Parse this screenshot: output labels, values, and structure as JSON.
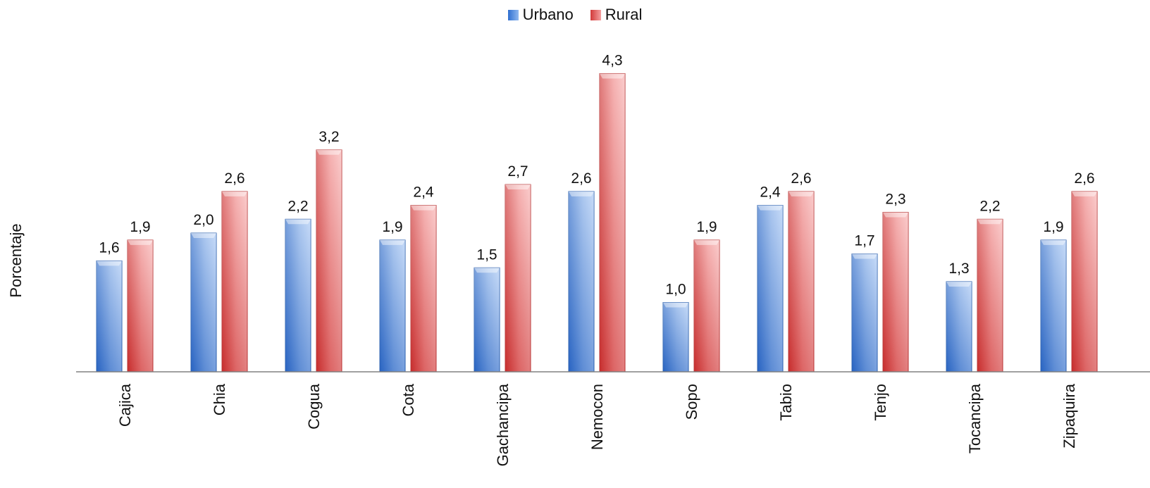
{
  "chart_data": {
    "type": "bar",
    "title": "",
    "xlabel": "",
    "ylabel": "Porcentaje",
    "ylim": [
      0,
      4.5
    ],
    "grid": false,
    "legend_position": "top-center",
    "categories": [
      "Cajica",
      "Chia",
      "Cogua",
      "Cota",
      "Gachancipa",
      "Nemocon",
      "Sopo",
      "Tabio",
      "Tenjo",
      "Tocancipa",
      "Zipaquira"
    ],
    "series": [
      {
        "name": "Urbano",
        "color": "#4f81bd",
        "values": [
          1.6,
          2.0,
          2.2,
          1.9,
          1.5,
          2.6,
          1.0,
          2.4,
          1.7,
          1.3,
          1.9
        ],
        "labels": [
          "1,6",
          "2,0",
          "2,2",
          "1,9",
          "1,5",
          "2,6",
          "1,0",
          "2,4",
          "1,7",
          "1,3",
          "1,9"
        ]
      },
      {
        "name": "Rural",
        "color": "#e05555",
        "values": [
          1.9,
          2.6,
          3.2,
          2.4,
          2.7,
          4.3,
          1.9,
          2.6,
          2.3,
          2.2,
          2.6
        ],
        "labels": [
          "1,9",
          "2,6",
          "3,2",
          "2,4",
          "2,7",
          "4,3",
          "1,9",
          "2,6",
          "2,3",
          "2,2",
          "2,6"
        ]
      }
    ]
  }
}
